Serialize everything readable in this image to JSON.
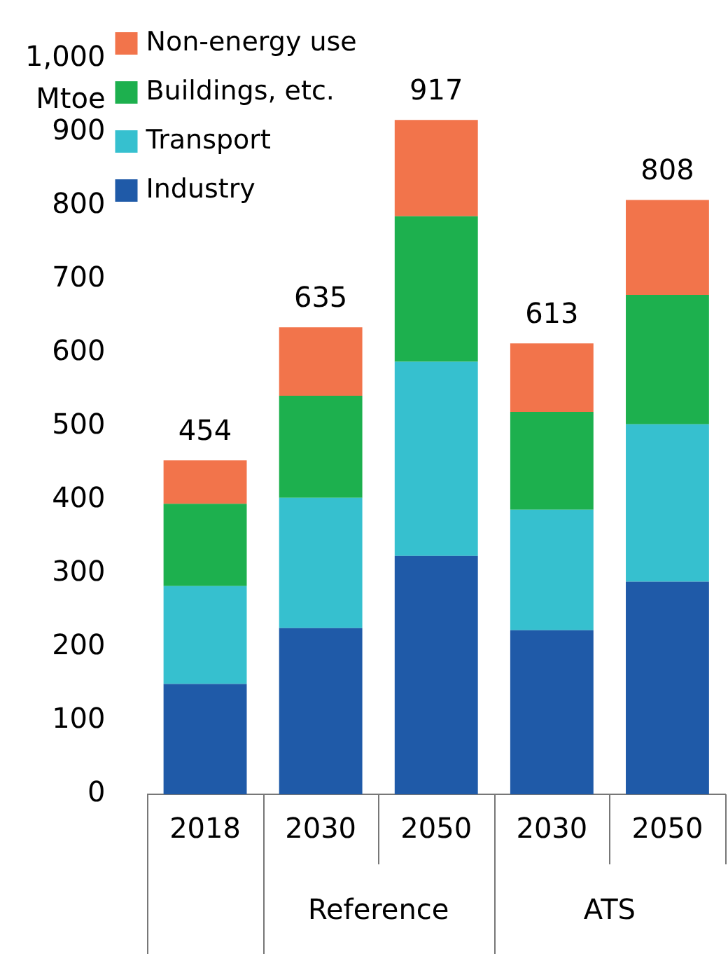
{
  "chart_data": {
    "type": "bar",
    "stacked": true,
    "ylabel": "Mtoe",
    "categories": [
      "2018",
      "2030",
      "2050",
      "2030",
      "2050"
    ],
    "annotations": [
      "Reference",
      "ATS"
    ],
    "series": [
      {
        "name": "Industry",
        "color": "#1f5aa8",
        "values": [
          150,
          226,
          324,
          223,
          289
        ]
      },
      {
        "name": "Transport",
        "color": "#36c0cf",
        "values": [
          133,
          177,
          264,
          164,
          214
        ]
      },
      {
        "name": "Buildings, etc.",
        "color": "#1db04e",
        "values": [
          112,
          139,
          198,
          133,
          176
        ]
      },
      {
        "name": "Non-energy use",
        "color": "#f2744b",
        "values": [
          59,
          93,
          131,
          93,
          129
        ]
      }
    ],
    "totals": [
      "454",
      "635",
      "917",
      "613",
      "808"
    ],
    "ylim": [
      0,
      1000
    ],
    "yticks": [
      0,
      100,
      200,
      300,
      400,
      500,
      600,
      700,
      800,
      900,
      {
        "value": 1000,
        "label": "1,000"
      }
    ],
    "grid": false,
    "legend": "top left"
  }
}
